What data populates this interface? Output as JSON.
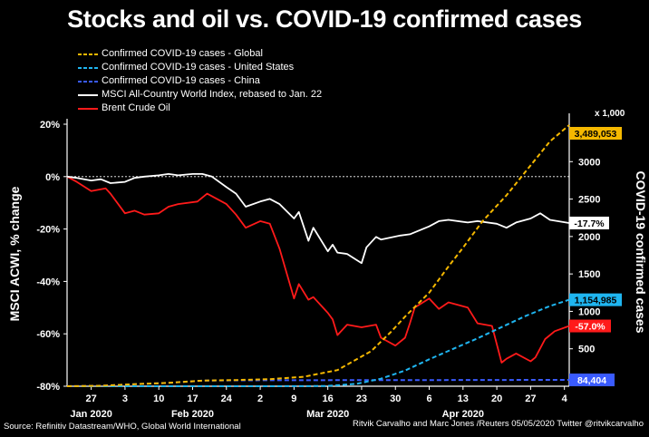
{
  "title": "Stocks and oil vs. COVID-19 confirmed cases",
  "source": "Source: Refinitiv Datastream/WHO, Global World International",
  "credit": "Ritvik Carvalho and Marc Jones /Reuters 05/05/2020 Twitter @ritvikcarvalho",
  "colors": {
    "global": "#f5b800",
    "us": "#1fb5f0",
    "china": "#3a5bff",
    "acwi": "#ffffff",
    "oil": "#ff1a1a"
  },
  "chart_data": {
    "type": "line",
    "title": "Stocks and oil vs. COVID-19 confirmed cases",
    "left_axis": {
      "label": "MSCI ACWI, % change",
      "range": [
        -80,
        20
      ],
      "ticks": [
        "20%",
        "0%",
        "-20%",
        "-40%",
        "-60%",
        "-80%"
      ],
      "tick_values": [
        20,
        0,
        -20,
        -40,
        -60,
        -80
      ]
    },
    "right_axis": {
      "label": "COVID-19 confirmed cases",
      "unit": "x 1,000",
      "range": [
        0,
        3500
      ],
      "ticks": [
        "3000",
        "2500",
        "2000",
        "1500",
        "1000",
        "500"
      ],
      "tick_values": [
        3000,
        2500,
        2000,
        1500,
        1000,
        500
      ]
    },
    "x_axis": {
      "day_ticks": [
        "27",
        "3",
        "10",
        "17",
        "24",
        "2",
        "9",
        "16",
        "23",
        "30",
        "6",
        "13",
        "20",
        "27",
        "4"
      ],
      "day_tick_dates": [
        "2020-01-27",
        "2020-02-03",
        "2020-02-10",
        "2020-02-17",
        "2020-02-24",
        "2020-03-02",
        "2020-03-09",
        "2020-03-16",
        "2020-03-23",
        "2020-03-30",
        "2020-04-06",
        "2020-04-13",
        "2020-04-20",
        "2020-04-27",
        "2020-05-04"
      ],
      "months": [
        {
          "label": "Jan 2020",
          "date": "2020-01-27"
        },
        {
          "label": "Feb 2020",
          "date": "2020-02-17"
        },
        {
          "label": "Mar 2020",
          "date": "2020-03-16"
        },
        {
          "label": "Apr 2020",
          "date": "2020-04-13"
        }
      ],
      "range": [
        "2020-01-22",
        "2020-05-05"
      ]
    },
    "series": [
      {
        "key": "global",
        "name": "Confirmed COVID-19 cases - Global",
        "axis": "right",
        "style": "dashed",
        "end_label": "3,489,053",
        "points": [
          [
            "2020-01-22",
            0.6
          ],
          [
            "2020-01-29",
            6
          ],
          [
            "2020-02-05",
            28
          ],
          [
            "2020-02-12",
            45
          ],
          [
            "2020-02-19",
            75
          ],
          [
            "2020-02-26",
            82
          ],
          [
            "2020-03-04",
            95
          ],
          [
            "2020-03-11",
            126
          ],
          [
            "2020-03-18",
            215
          ],
          [
            "2020-03-25",
            470
          ],
          [
            "2020-03-29",
            720
          ],
          [
            "2020-04-01",
            930
          ],
          [
            "2020-04-06",
            1250
          ],
          [
            "2020-04-10",
            1600
          ],
          [
            "2020-04-13",
            1850
          ],
          [
            "2020-04-17",
            2200
          ],
          [
            "2020-04-22",
            2550
          ],
          [
            "2020-04-27",
            2950
          ],
          [
            "2020-05-01",
            3270
          ],
          [
            "2020-05-05",
            3489
          ]
        ]
      },
      {
        "key": "us",
        "name": "Confirmed COVID-19 cases - United States",
        "axis": "right",
        "style": "dashed",
        "end_label": "1,154,985",
        "points": [
          [
            "2020-01-22",
            0
          ],
          [
            "2020-02-20",
            0.02
          ],
          [
            "2020-03-01",
            0.07
          ],
          [
            "2020-03-10",
            0.9
          ],
          [
            "2020-03-16",
            4
          ],
          [
            "2020-03-22",
            33
          ],
          [
            "2020-03-27",
            100
          ],
          [
            "2020-04-01",
            210
          ],
          [
            "2020-04-06",
            360
          ],
          [
            "2020-04-11",
            500
          ],
          [
            "2020-04-16",
            640
          ],
          [
            "2020-04-21",
            790
          ],
          [
            "2020-04-26",
            940
          ],
          [
            "2020-05-01",
            1070
          ],
          [
            "2020-05-05",
            1155
          ]
        ]
      },
      {
        "key": "china",
        "name": "Confirmed COVID-19 cases - China",
        "axis": "right",
        "style": "dashed",
        "end_label": "84,404",
        "points": [
          [
            "2020-01-22",
            0.6
          ],
          [
            "2020-01-29",
            6
          ],
          [
            "2020-02-05",
            28
          ],
          [
            "2020-02-12",
            44.6
          ],
          [
            "2020-02-19",
            74.6
          ],
          [
            "2020-02-26",
            78.5
          ],
          [
            "2020-03-04",
            80.4
          ],
          [
            "2020-03-18",
            81.1
          ],
          [
            "2020-04-01",
            81.6
          ],
          [
            "2020-04-17",
            83.8
          ],
          [
            "2020-05-05",
            84.4
          ]
        ]
      },
      {
        "key": "acwi",
        "name": "MSCI All-Country World Index, rebased to Jan. 22",
        "axis": "left",
        "style": "solid",
        "end_label": "-17.7%",
        "points": [
          [
            "2020-01-22",
            0
          ],
          [
            "2020-01-24",
            -0.5
          ],
          [
            "2020-01-27",
            -1.5
          ],
          [
            "2020-01-29",
            -1.0
          ],
          [
            "2020-01-31",
            -2.5
          ],
          [
            "2020-02-03",
            -2.0
          ],
          [
            "2020-02-05",
            -0.5
          ],
          [
            "2020-02-07",
            0.0
          ],
          [
            "2020-02-10",
            0.5
          ],
          [
            "2020-02-12",
            1.0
          ],
          [
            "2020-02-14",
            0.5
          ],
          [
            "2020-02-17",
            1.0
          ],
          [
            "2020-02-19",
            1.0
          ],
          [
            "2020-02-21",
            0.0
          ],
          [
            "2020-02-24",
            -4.0
          ],
          [
            "2020-02-26",
            -6.5
          ],
          [
            "2020-02-28",
            -11.5
          ],
          [
            "2020-03-02",
            -9.5
          ],
          [
            "2020-03-04",
            -8.5
          ],
          [
            "2020-03-06",
            -10.5
          ],
          [
            "2020-03-09",
            -16.0
          ],
          [
            "2020-03-10",
            -13.5
          ],
          [
            "2020-03-12",
            -24.5
          ],
          [
            "2020-03-13",
            -19.5
          ],
          [
            "2020-03-16",
            -28.5
          ],
          [
            "2020-03-17",
            -26.0
          ],
          [
            "2020-03-18",
            -29.0
          ],
          [
            "2020-03-20",
            -29.5
          ],
          [
            "2020-03-23",
            -33.0
          ],
          [
            "2020-03-24",
            -27.0
          ],
          [
            "2020-03-26",
            -23.0
          ],
          [
            "2020-03-27",
            -24.0
          ],
          [
            "2020-03-31",
            -22.5
          ],
          [
            "2020-04-02",
            -22.0
          ],
          [
            "2020-04-06",
            -19.0
          ],
          [
            "2020-04-08",
            -17.0
          ],
          [
            "2020-04-10",
            -16.5
          ],
          [
            "2020-04-14",
            -17.5
          ],
          [
            "2020-04-16",
            -17.0
          ],
          [
            "2020-04-20",
            -18.0
          ],
          [
            "2020-04-22",
            -19.5
          ],
          [
            "2020-04-24",
            -17.5
          ],
          [
            "2020-04-27",
            -16.0
          ],
          [
            "2020-04-29",
            -14.0
          ],
          [
            "2020-05-01",
            -16.5
          ],
          [
            "2020-05-05",
            -17.7
          ]
        ]
      },
      {
        "key": "oil",
        "name": "Brent Crude Oil",
        "axis": "left",
        "style": "solid",
        "end_label": "-57.0%",
        "points": [
          [
            "2020-01-22",
            0
          ],
          [
            "2020-01-24",
            -2.0
          ],
          [
            "2020-01-27",
            -5.5
          ],
          [
            "2020-01-30",
            -4.5
          ],
          [
            "2020-01-31",
            -6.5
          ],
          [
            "2020-02-03",
            -14.0
          ],
          [
            "2020-02-05",
            -13.0
          ],
          [
            "2020-02-07",
            -14.5
          ],
          [
            "2020-02-10",
            -14.0
          ],
          [
            "2020-02-12",
            -11.5
          ],
          [
            "2020-02-14",
            -10.5
          ],
          [
            "2020-02-18",
            -9.5
          ],
          [
            "2020-02-20",
            -6.5
          ],
          [
            "2020-02-24",
            -10.5
          ],
          [
            "2020-02-26",
            -14.5
          ],
          [
            "2020-02-28",
            -19.5
          ],
          [
            "2020-03-02",
            -17.0
          ],
          [
            "2020-03-04",
            -18.0
          ],
          [
            "2020-03-06",
            -27.5
          ],
          [
            "2020-03-09",
            -46.5
          ],
          [
            "2020-03-10",
            -41.0
          ],
          [
            "2020-03-12",
            -47.0
          ],
          [
            "2020-03-13",
            -46.0
          ],
          [
            "2020-03-16",
            -52.0
          ],
          [
            "2020-03-17",
            -54.5
          ],
          [
            "2020-03-18",
            -60.5
          ],
          [
            "2020-03-20",
            -56.5
          ],
          [
            "2020-03-23",
            -57.5
          ],
          [
            "2020-03-26",
            -56.5
          ],
          [
            "2020-03-27",
            -61.5
          ],
          [
            "2020-03-30",
            -64.5
          ],
          [
            "2020-04-01",
            -61.5
          ],
          [
            "2020-04-02",
            -56.0
          ],
          [
            "2020-04-03",
            -50.0
          ],
          [
            "2020-04-06",
            -46.5
          ],
          [
            "2020-04-08",
            -50.5
          ],
          [
            "2020-04-10",
            -48.0
          ],
          [
            "2020-04-14",
            -50.0
          ],
          [
            "2020-04-16",
            -56.0
          ],
          [
            "2020-04-19",
            -57.0
          ],
          [
            "2020-04-21",
            -71.0
          ],
          [
            "2020-04-22",
            -69.5
          ],
          [
            "2020-04-24",
            -67.5
          ],
          [
            "2020-04-27",
            -70.5
          ],
          [
            "2020-04-28",
            -69.0
          ],
          [
            "2020-04-30",
            -62.0
          ],
          [
            "2020-05-02",
            -59.0
          ],
          [
            "2020-05-05",
            -57.0
          ]
        ]
      }
    ]
  }
}
